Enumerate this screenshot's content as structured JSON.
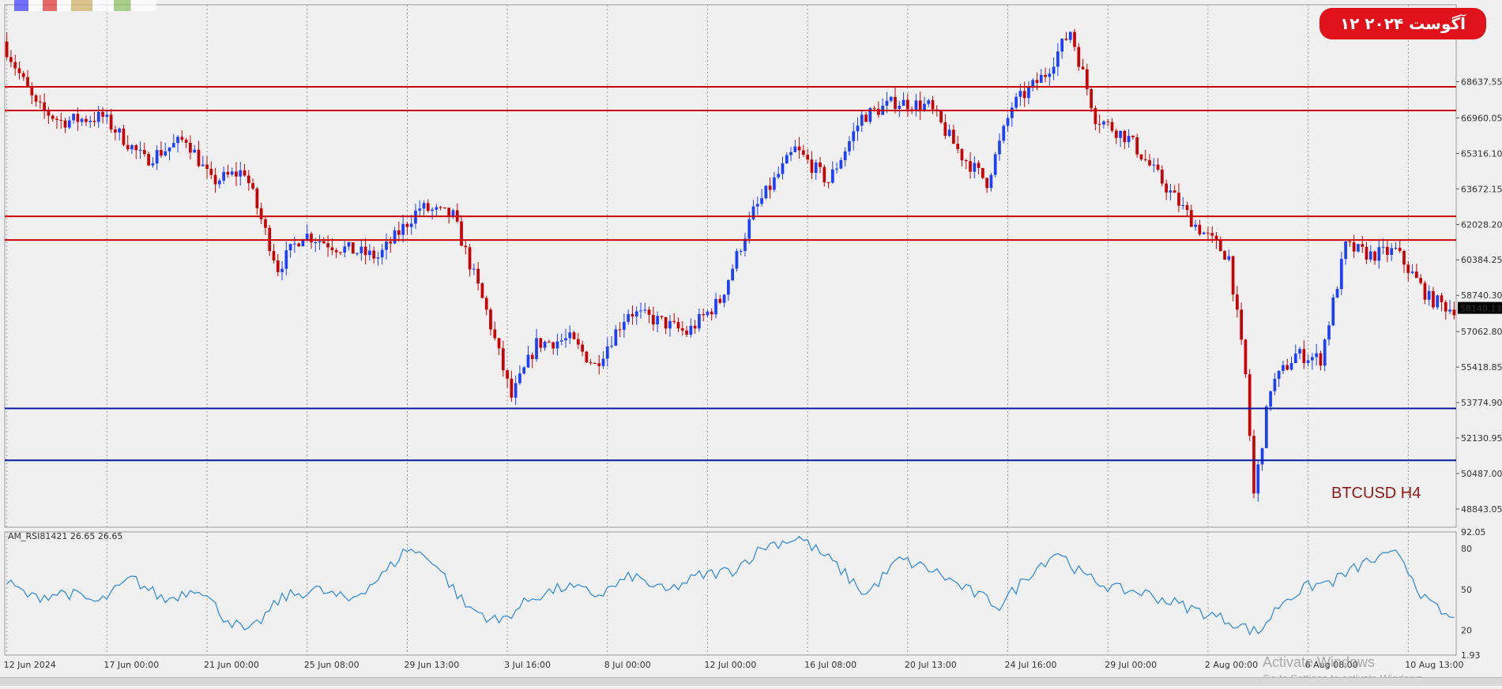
{
  "header": {
    "date_badge": "۱۲ آگوست ۲۰۲۴",
    "symbol": "BTCUSD H4",
    "rsi_label": "AM_RSI81421 26.65 26.65",
    "watermark": "Activate Windows",
    "watermark_sub": "Go to Settings to activate Windows."
  },
  "colors": {
    "bull_candle": "#1a3fff",
    "bear_candle": "#cc0000",
    "resistance_line": "#cc0000",
    "support_line": "#0a1aa0",
    "rsi_line": "#3a8fd8",
    "date_badge_bg": "#e0111b"
  },
  "chart_data": {
    "type": "candlestick",
    "symbol": "BTCUSD",
    "timeframe": "H4",
    "ylim": [
      48000,
      72200
    ],
    "y_ticks": [
      "68637.55",
      "66960.05",
      "65316.10",
      "63672.15",
      "62028.20",
      "60384.25",
      "58740.30",
      "57062.80",
      "55418.85",
      "53774.90",
      "52130.95",
      "50487.00",
      "48843.05"
    ],
    "y_tick_values": [
      68637.55,
      66960.05,
      65316.1,
      63672.15,
      62028.2,
      60384.25,
      58740.3,
      57062.8,
      55418.85,
      53774.9,
      52130.95,
      50487.0,
      48843.05
    ],
    "current_price": "58140.13",
    "current_price_value": 58140.13,
    "x_labels": [
      "12 Jun 2024",
      "17 Jun 00:00",
      "21 Jun 00:00",
      "25 Jun 08:00",
      "29 Jun 13:00",
      "3 Jul 16:00",
      "8 Jul 00:00",
      "12 Jul 00:00",
      "16 Jul 08:00",
      "20 Jul 13:00",
      "24 Jul 16:00",
      "29 Jul 00:00",
      "2 Aug 00:00",
      "6 Aug 08:00",
      "10 Aug 13:00"
    ],
    "x_label_index": [
      0,
      24,
      48,
      72,
      96,
      120,
      144,
      168,
      192,
      216,
      240,
      264,
      288,
      312,
      336
    ],
    "num_bars": 348,
    "horizontal_lines": [
      {
        "price": 68400,
        "color": "red"
      },
      {
        "price": 67300,
        "color": "red"
      },
      {
        "price": 62400,
        "color": "red"
      },
      {
        "price": 61300,
        "color": "red"
      },
      {
        "price": 53500,
        "color": "blue"
      },
      {
        "price": 51100,
        "color": "blue"
      }
    ],
    "anchors": [
      [
        0,
        70500
      ],
      [
        8,
        67500
      ],
      [
        14,
        66800
      ],
      [
        24,
        67000
      ],
      [
        34,
        65000
      ],
      [
        44,
        66000
      ],
      [
        50,
        64000
      ],
      [
        58,
        64500
      ],
      [
        66,
        60000
      ],
      [
        72,
        61600
      ],
      [
        80,
        61000
      ],
      [
        90,
        60500
      ],
      [
        100,
        62800
      ],
      [
        108,
        62400
      ],
      [
        116,
        58000
      ],
      [
        122,
        54000
      ],
      [
        128,
        56500
      ],
      [
        136,
        56700
      ],
      [
        142,
        55500
      ],
      [
        150,
        58000
      ],
      [
        158,
        57500
      ],
      [
        164,
        57000
      ],
      [
        172,
        58500
      ],
      [
        180,
        62600
      ],
      [
        190,
        65500
      ],
      [
        198,
        64000
      ],
      [
        206,
        67000
      ],
      [
        214,
        67700
      ],
      [
        222,
        67500
      ],
      [
        230,
        65200
      ],
      [
        236,
        64000
      ],
      [
        242,
        67500
      ],
      [
        250,
        69000
      ],
      [
        256,
        71000
      ],
      [
        262,
        67000
      ],
      [
        270,
        66000
      ],
      [
        278,
        64000
      ],
      [
        286,
        62000
      ],
      [
        294,
        60500
      ],
      [
        298,
        55000
      ],
      [
        300,
        49500
      ],
      [
        304,
        54500
      ],
      [
        310,
        56000
      ],
      [
        316,
        55800
      ],
      [
        322,
        61000
      ],
      [
        328,
        60600
      ],
      [
        334,
        60800
      ],
      [
        342,
        58600
      ],
      [
        347,
        58140
      ]
    ],
    "rsi": {
      "ylim": [
        1.93,
        92.05
      ],
      "y_ticks": [
        "92.05",
        "80",
        "50",
        "20",
        "1.93"
      ],
      "y_tick_values": [
        92.05,
        80,
        50,
        20,
        1.93
      ],
      "anchors": [
        [
          0,
          55
        ],
        [
          6,
          44
        ],
        [
          14,
          48
        ],
        [
          22,
          40
        ],
        [
          30,
          58
        ],
        [
          38,
          42
        ],
        [
          46,
          52
        ],
        [
          52,
          30
        ],
        [
          58,
          18
        ],
        [
          66,
          44
        ],
        [
          74,
          50
        ],
        [
          82,
          42
        ],
        [
          90,
          60
        ],
        [
          96,
          80
        ],
        [
          102,
          72
        ],
        [
          110,
          38
        ],
        [
          118,
          26
        ],
        [
          126,
          44
        ],
        [
          134,
          52
        ],
        [
          142,
          46
        ],
        [
          150,
          60
        ],
        [
          158,
          48
        ],
        [
          166,
          60
        ],
        [
          174,
          64
        ],
        [
          182,
          82
        ],
        [
          190,
          88
        ],
        [
          198,
          70
        ],
        [
          206,
          46
        ],
        [
          214,
          72
        ],
        [
          222,
          64
        ],
        [
          230,
          50
        ],
        [
          238,
          38
        ],
        [
          246,
          64
        ],
        [
          252,
          78
        ],
        [
          258,
          60
        ],
        [
          266,
          50
        ],
        [
          272,
          48
        ],
        [
          280,
          40
        ],
        [
          288,
          32
        ],
        [
          294,
          26
        ],
        [
          300,
          18
        ],
        [
          306,
          42
        ],
        [
          312,
          52
        ],
        [
          318,
          56
        ],
        [
          326,
          70
        ],
        [
          334,
          76
        ],
        [
          340,
          42
        ],
        [
          347,
          26.65
        ]
      ]
    }
  }
}
